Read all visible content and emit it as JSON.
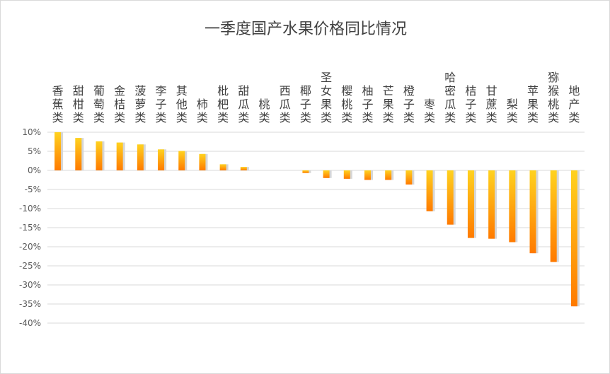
{
  "chart_data": {
    "type": "bar",
    "title": "一季度国产水果价格同比情况",
    "categories": [
      "香蕉类",
      "甜柑类",
      "葡萄类",
      "金桔类",
      "菠萝类",
      "李子类",
      "其他类",
      "柿类",
      "枇杷类",
      "甜瓜类",
      "桃类",
      "西瓜类",
      "椰子类",
      "圣女果类",
      "樱桃类",
      "柚子类",
      "芒果类",
      "橙子类",
      "枣类",
      "哈密瓜类",
      "桔子类",
      "甘蔗类",
      "梨类",
      "苹果类",
      "猕猴桃类",
      "地产类"
    ],
    "values": [
      10.0,
      8.5,
      7.6,
      7.3,
      6.8,
      5.5,
      5.1,
      4.3,
      1.6,
      0.9,
      0.0,
      0.0,
      -0.7,
      -2.0,
      -2.2,
      -2.5,
      -2.5,
      -3.7,
      -10.7,
      -14.2,
      -17.7,
      -17.9,
      -18.8,
      -21.7,
      -24.0,
      -35.6
    ],
    "y_ticks": [
      "10%",
      "5%",
      "0%",
      "-5%",
      "-10%",
      "-15%",
      "-20%",
      "-25%",
      "-30%",
      "-35%",
      "-40%"
    ],
    "ylim": [
      -40,
      10
    ],
    "grid": true,
    "colors": {
      "bar_top": "#ffd21f",
      "bar_bottom": "#ff7a00",
      "shadow": "#d6d6d6",
      "grid": "#d9d9d9"
    }
  }
}
